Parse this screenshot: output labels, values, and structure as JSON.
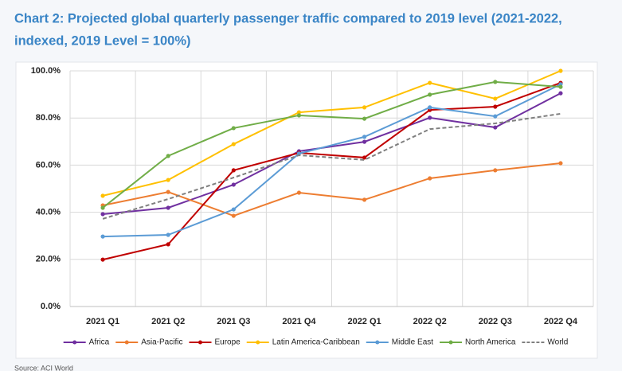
{
  "chart_data": {
    "type": "line",
    "title": [
      "Chart 2: Projected global quarterly passenger traffic compared to 2019 level (2021-2022,",
      "indexed, 2019 Level = 100%)"
    ],
    "source": "Source: ACI World",
    "categories": [
      "2021 Q1",
      "2021 Q2",
      "2021 Q3",
      "2021 Q4",
      "2022 Q1",
      "2022 Q2",
      "2022 Q3",
      "2022 Q4"
    ],
    "ylim": [
      0,
      100
    ],
    "yticks": [
      {
        "value": 0,
        "label": "0.0%"
      },
      {
        "value": 20,
        "label": "20.0%"
      },
      {
        "value": 40,
        "label": "40.0%"
      },
      {
        "value": 60,
        "label": "60.0%"
      },
      {
        "value": 80,
        "label": "80.0%"
      },
      {
        "value": 100,
        "label": "100.0%"
      }
    ],
    "grid": true,
    "legend": "bottom",
    "series": [
      {
        "name": "Africa",
        "color": "#7030a0",
        "values": [
          39.2,
          41.9,
          51.7,
          65.9,
          69.9,
          80.1,
          76.0,
          90.5
        ]
      },
      {
        "name": "Asia-Pacific",
        "color": "#ed7d31",
        "values": [
          42.9,
          48.6,
          38.5,
          48.3,
          45.3,
          54.4,
          57.8,
          60.8
        ]
      },
      {
        "name": "Europe",
        "color": "#c00000",
        "values": [
          19.9,
          26.4,
          57.8,
          65.2,
          63.2,
          83.4,
          84.8,
          94.9
        ]
      },
      {
        "name": "Latin America-Caribbean",
        "color": "#ffc000",
        "values": [
          47.0,
          53.7,
          68.9,
          82.4,
          84.5,
          94.9,
          88.2,
          100.0
        ]
      },
      {
        "name": "Middle East",
        "color": "#5b9bd5",
        "values": [
          29.7,
          30.4,
          41.2,
          64.9,
          72.0,
          84.5,
          80.7,
          94.3
        ]
      },
      {
        "name": "North America",
        "color": "#70ad47",
        "values": [
          41.9,
          63.9,
          75.7,
          81.1,
          79.7,
          89.9,
          95.3,
          93.2
        ]
      },
      {
        "name": "World",
        "color": "#7f7f7f",
        "dashed": true,
        "values": [
          37.2,
          45.6,
          54.7,
          64.2,
          62.2,
          75.3,
          77.7,
          81.8
        ]
      }
    ]
  }
}
